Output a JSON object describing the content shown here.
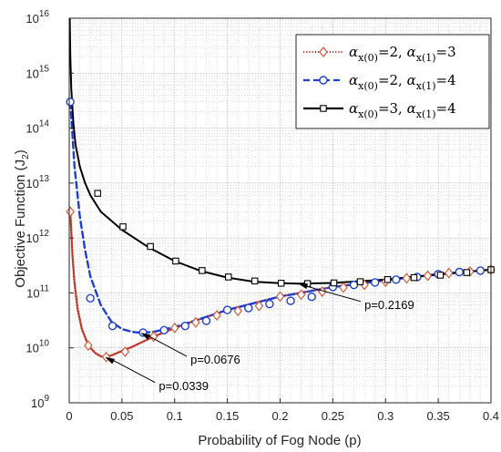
{
  "chart_data": {
    "type": "line",
    "xlabel": "Probability of Fog Node (p)",
    "ylabel": "Objective Function (J",
    "ylabel_sub": "2",
    "ylabel_close": ")",
    "xlim": [
      0,
      0.4
    ],
    "ylim_exponents": [
      9,
      16
    ],
    "y_scale": "log",
    "grid": true,
    "legend_position": "top-right",
    "x_ticks": [
      0,
      0.05,
      0.1,
      0.15,
      0.2,
      0.25,
      0.3,
      0.35,
      0.4
    ],
    "x_tick_labels": [
      "0",
      "0.05",
      "0.1",
      "0.15",
      "0.2",
      "0.25",
      "0.3",
      "0.35",
      "0.4"
    ],
    "y_tick_exponents": [
      9,
      10,
      11,
      12,
      13,
      14,
      15,
      16
    ],
    "y_tick_base": "10",
    "series": [
      {
        "legend_parts": [
          "α",
          "x(0)",
          "=2, ",
          "α",
          "x(1)",
          "=3"
        ],
        "color": "#c0392b",
        "marker_color": "#d45a3a",
        "line_style": "dotted",
        "marker": "diamond",
        "x": [
          0.001,
          0.003,
          0.005,
          0.008,
          0.012,
          0.016,
          0.02,
          0.025,
          0.03,
          0.034,
          0.04,
          0.05,
          0.06,
          0.08,
          0.1,
          0.125,
          0.15,
          0.2,
          0.25,
          0.3,
          0.35,
          0.4
        ],
        "y": [
          3000000000000.0,
          500000000000.0,
          150000000000.0,
          50000000000.0,
          22000000000.0,
          14000000000.0,
          10000000000.0,
          8000000000.0,
          7000000000.0,
          6800000000.0,
          7300000000.0,
          8800000000.0,
          10500000000.0,
          16000000000.0,
          23000000000.0,
          34000000000.0,
          49000000000.0,
          86000000000.0,
          128000000000.0,
          170000000000.0,
          220000000000.0,
          265000000000.0
        ],
        "marker_x": [
          0.001,
          0.018,
          0.035,
          0.053,
          0.08,
          0.1,
          0.12,
          0.14,
          0.16,
          0.18,
          0.2,
          0.22,
          0.24,
          0.26,
          0.28,
          0.3,
          0.32,
          0.34,
          0.36,
          0.38,
          0.4
        ],
        "marker_y": [
          3000000000000.0,
          11000000000.0,
          6800000000.0,
          8500000000.0,
          16000000000.0,
          23000000000.0,
          29000000000.0,
          39000000000.0,
          47000000000.0,
          58000000000.0,
          86000000000.0,
          93000000000.0,
          105000000000.0,
          125000000000.0,
          140000000000.0,
          160000000000.0,
          185000000000.0,
          205000000000.0,
          230000000000.0,
          245000000000.0,
          265000000000.0
        ]
      },
      {
        "legend_parts": [
          "α",
          "x(0)",
          "=2, ",
          "α",
          "x(1)",
          "=4"
        ],
        "color": "#1f3fd0",
        "marker_color": "#1f3fd0",
        "line_style": "dashed",
        "marker": "circle",
        "x": [
          0.001,
          0.005,
          0.01,
          0.015,
          0.02,
          0.03,
          0.04,
          0.05,
          0.06,
          0.068,
          0.08,
          0.1,
          0.125,
          0.15,
          0.2,
          0.25,
          0.3,
          0.35,
          0.4
        ],
        "y": [
          300000000000000.0,
          20000000000000.0,
          2500000000000.0,
          600000000000.0,
          200000000000.0,
          60000000000.0,
          30000000000.0,
          22000000000.0,
          19500000000.0,
          18800000000.0,
          19500000000.0,
          24000000000.0,
          34000000000.0,
          49000000000.0,
          86000000000.0,
          128000000000.0,
          170000000000.0,
          220000000000.0,
          265000000000.0
        ],
        "marker_x": [
          0.001,
          0.02,
          0.041,
          0.07,
          0.09,
          0.11,
          0.13,
          0.15,
          0.17,
          0.19,
          0.21,
          0.23,
          0.25,
          0.27,
          0.29,
          0.31,
          0.33,
          0.35,
          0.37,
          0.39
        ],
        "marker_y": [
          300000000000000.0,
          80000000000.0,
          25000000000.0,
          19000000000.0,
          21000000000.0,
          25000000000.0,
          31000000000.0,
          49000000000.0,
          53000000000.0,
          63000000000.0,
          72000000000.0,
          85000000000.0,
          128000000000.0,
          140000000000.0,
          155000000000.0,
          175000000000.0,
          195000000000.0,
          220000000000.0,
          240000000000.0,
          255000000000.0
        ]
      },
      {
        "legend_parts": [
          "α",
          "x(0)",
          "=3, ",
          "α",
          "x(1)",
          "=4"
        ],
        "color": "#000000",
        "marker_color": "#000000",
        "line_style": "solid",
        "marker": "square",
        "x": [
          0.0005,
          0.001,
          0.002,
          0.004,
          0.006,
          0.01,
          0.015,
          0.02,
          0.03,
          0.05,
          0.075,
          0.1,
          0.125,
          0.15,
          0.175,
          0.2,
          0.217,
          0.25,
          0.3,
          0.35,
          0.4
        ],
        "y": [
          1e+16,
          2000000000000000.0,
          500000000000000.0,
          120000000000000.0,
          50000000000000.0,
          20000000000000.0,
          10000000000000.0,
          6000000000000.0,
          3000000000000.0,
          1400000000000.0,
          680000000000.0,
          380000000000.0,
          250000000000.0,
          190000000000.0,
          160000000000.0,
          150000000000.0,
          148000000000.0,
          152000000000.0,
          175000000000.0,
          215000000000.0,
          265000000000.0
        ],
        "marker_x": [
          0.027,
          0.051,
          0.077,
          0.101,
          0.126,
          0.151,
          0.176,
          0.201,
          0.226,
          0.251,
          0.276,
          0.302,
          0.327,
          0.352,
          0.377,
          0.4
        ],
        "marker_y": [
          6500000000000.0,
          1600000000000.0,
          700000000000.0,
          380000000000.0,
          255000000000.0,
          195000000000.0,
          165000000000.0,
          150000000000.0,
          148000000000.0,
          152000000000.0,
          160000000000.0,
          175000000000.0,
          190000000000.0,
          210000000000.0,
          235000000000.0,
          265000000000.0
        ]
      }
    ],
    "annotations": [
      {
        "text": "p=0.2169",
        "x_point": 0.2169,
        "y_point": 148000000000.0,
        "x_text": 0.28,
        "y_text": 60000000000.0
      },
      {
        "text": "p=0.0676",
        "x_point": 0.0676,
        "y_point": 18800000000.0,
        "x_text": 0.115,
        "y_text": 6000000000.0
      },
      {
        "text": "p=0.0339",
        "x_point": 0.0339,
        "y_point": 6800000000.0,
        "x_text": 0.085,
        "y_text": 2000000000.0
      }
    ]
  }
}
